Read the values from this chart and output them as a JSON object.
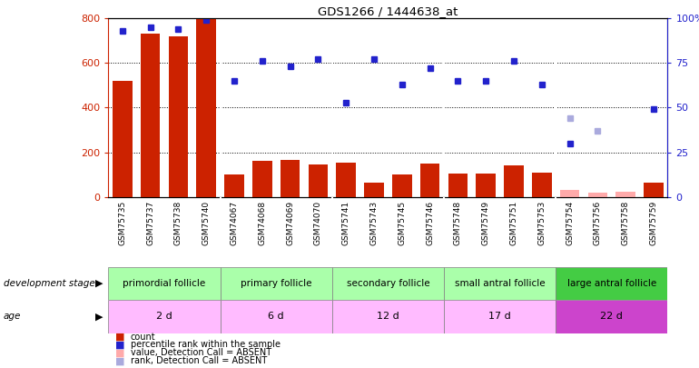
{
  "title": "GDS1266 / 1444638_at",
  "samples": [
    "GSM75735",
    "GSM75737",
    "GSM75738",
    "GSM75740",
    "GSM74067",
    "GSM74068",
    "GSM74069",
    "GSM74070",
    "GSM75741",
    "GSM75743",
    "GSM75745",
    "GSM75746",
    "GSM75748",
    "GSM75749",
    "GSM75751",
    "GSM75753",
    "GSM75754",
    "GSM75756",
    "GSM75758",
    "GSM75759"
  ],
  "counts": [
    520,
    730,
    720,
    800,
    100,
    160,
    165,
    145,
    155,
    65,
    100,
    148,
    105,
    105,
    140,
    110,
    30,
    20,
    25,
    65
  ],
  "percentile_ranks": [
    93,
    95,
    94,
    99,
    65,
    76,
    73,
    77,
    53,
    77,
    63,
    72,
    65,
    65,
    76,
    63,
    30,
    null,
    null,
    49
  ],
  "absent_rank": [
    null,
    null,
    null,
    null,
    null,
    null,
    null,
    null,
    null,
    null,
    null,
    null,
    null,
    null,
    null,
    null,
    44,
    37,
    null,
    null
  ],
  "is_absent_count": [
    false,
    false,
    false,
    false,
    false,
    false,
    false,
    false,
    false,
    false,
    false,
    false,
    false,
    false,
    false,
    false,
    true,
    true,
    true,
    false
  ],
  "dev_groups": [
    {
      "label": "primordial follicle",
      "color": "#aaffaa",
      "start": 0,
      "end": 4
    },
    {
      "label": "primary follicle",
      "color": "#aaffaa",
      "start": 4,
      "end": 8
    },
    {
      "label": "secondary follicle",
      "color": "#aaffaa",
      "start": 8,
      "end": 12
    },
    {
      "label": "small antral follicle",
      "color": "#aaffaa",
      "start": 12,
      "end": 16
    },
    {
      "label": "large antral follicle",
      "color": "#44cc44",
      "start": 16,
      "end": 20
    }
  ],
  "age_groups": [
    {
      "label": "2 d",
      "color": "#ffbbff",
      "start": 0,
      "end": 4
    },
    {
      "label": "6 d",
      "color": "#ffbbff",
      "start": 4,
      "end": 8
    },
    {
      "label": "12 d",
      "color": "#ffbbff",
      "start": 8,
      "end": 12
    },
    {
      "label": "17 d",
      "color": "#ffbbff",
      "start": 12,
      "end": 16
    },
    {
      "label": "22 d",
      "color": "#cc44cc",
      "start": 16,
      "end": 20
    }
  ],
  "ylim_left": [
    0,
    800
  ],
  "ylim_right": [
    0,
    100
  ],
  "yticks_left": [
    0,
    200,
    400,
    600,
    800
  ],
  "yticks_right": [
    0,
    25,
    50,
    75,
    100
  ],
  "ytick_labels_right": [
    "0",
    "25",
    "50",
    "75",
    "100%"
  ],
  "bar_color": "#cc2200",
  "bar_color_absent": "#ffaaaa",
  "dot_color": "#2222cc",
  "dot_color_absent": "#aaaadd",
  "label_left_color": "#cc2200",
  "label_right_color": "#2222cc",
  "tick_bg_color": "#cccccc"
}
